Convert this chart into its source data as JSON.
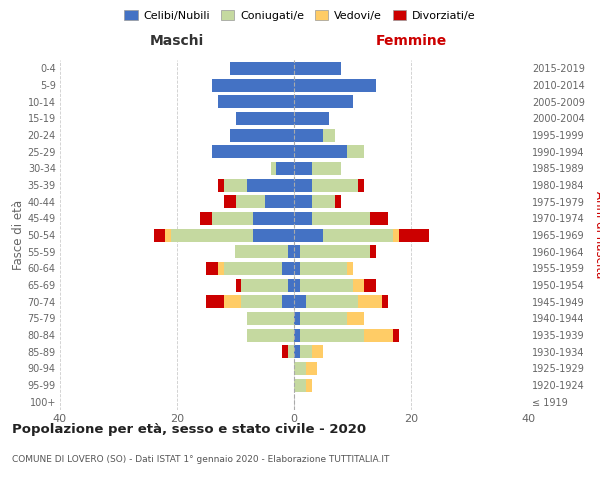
{
  "age_groups": [
    "100+",
    "95-99",
    "90-94",
    "85-89",
    "80-84",
    "75-79",
    "70-74",
    "65-69",
    "60-64",
    "55-59",
    "50-54",
    "45-49",
    "40-44",
    "35-39",
    "30-34",
    "25-29",
    "20-24",
    "15-19",
    "10-14",
    "5-9",
    "0-4"
  ],
  "birth_years": [
    "≤ 1919",
    "1920-1924",
    "1925-1929",
    "1930-1934",
    "1935-1939",
    "1940-1944",
    "1945-1949",
    "1950-1954",
    "1955-1959",
    "1960-1964",
    "1965-1969",
    "1970-1974",
    "1975-1979",
    "1980-1984",
    "1985-1989",
    "1990-1994",
    "1995-1999",
    "2000-2004",
    "2005-2009",
    "2010-2014",
    "2015-2019"
  ],
  "male": {
    "celibi": [
      0,
      0,
      0,
      0,
      0,
      0,
      2,
      1,
      2,
      1,
      7,
      7,
      5,
      8,
      3,
      14,
      11,
      10,
      13,
      14,
      11
    ],
    "coniugati": [
      0,
      0,
      0,
      1,
      8,
      8,
      7,
      8,
      10,
      9,
      14,
      7,
      5,
      4,
      1,
      0,
      0,
      0,
      0,
      0,
      0
    ],
    "vedovi": [
      0,
      0,
      0,
      0,
      0,
      0,
      3,
      0,
      1,
      0,
      1,
      0,
      0,
      0,
      0,
      0,
      0,
      0,
      0,
      0,
      0
    ],
    "divorziati": [
      0,
      0,
      0,
      1,
      0,
      0,
      3,
      1,
      2,
      0,
      2,
      2,
      2,
      1,
      0,
      0,
      0,
      0,
      0,
      0,
      0
    ]
  },
  "female": {
    "nubili": [
      0,
      0,
      0,
      1,
      1,
      1,
      2,
      1,
      1,
      1,
      5,
      3,
      3,
      3,
      3,
      9,
      5,
      6,
      10,
      14,
      8
    ],
    "coniugate": [
      0,
      2,
      2,
      2,
      11,
      8,
      9,
      9,
      8,
      12,
      12,
      10,
      4,
      8,
      5,
      3,
      2,
      0,
      0,
      0,
      0
    ],
    "vedove": [
      0,
      1,
      2,
      2,
      5,
      3,
      4,
      2,
      1,
      0,
      1,
      0,
      0,
      0,
      0,
      0,
      0,
      0,
      0,
      0,
      0
    ],
    "divorziate": [
      0,
      0,
      0,
      0,
      1,
      0,
      1,
      2,
      0,
      1,
      5,
      3,
      1,
      1,
      0,
      0,
      0,
      0,
      0,
      0,
      0
    ]
  },
  "colors": {
    "celibi": "#4472C4",
    "coniugati": "#C5D9A0",
    "vedovi": "#FFCC66",
    "divorziati": "#CC0000"
  },
  "xlim": 40,
  "title": "Popolazione per età, sesso e stato civile - 2020",
  "subtitle": "COMUNE DI LOVERO (SO) - Dati ISTAT 1° gennaio 2020 - Elaborazione TUTTITALIA.IT",
  "ylabel_left": "Fasce di età",
  "ylabel_right": "Anni di nascita",
  "xlabel_left": "Maschi",
  "xlabel_right": "Femmine",
  "legend_labels": [
    "Celibi/Nubili",
    "Coniugati/e",
    "Vedovi/e",
    "Divorziati/e"
  ],
  "bg_color": "#FFFFFF",
  "grid_color": "#CCCCCC"
}
